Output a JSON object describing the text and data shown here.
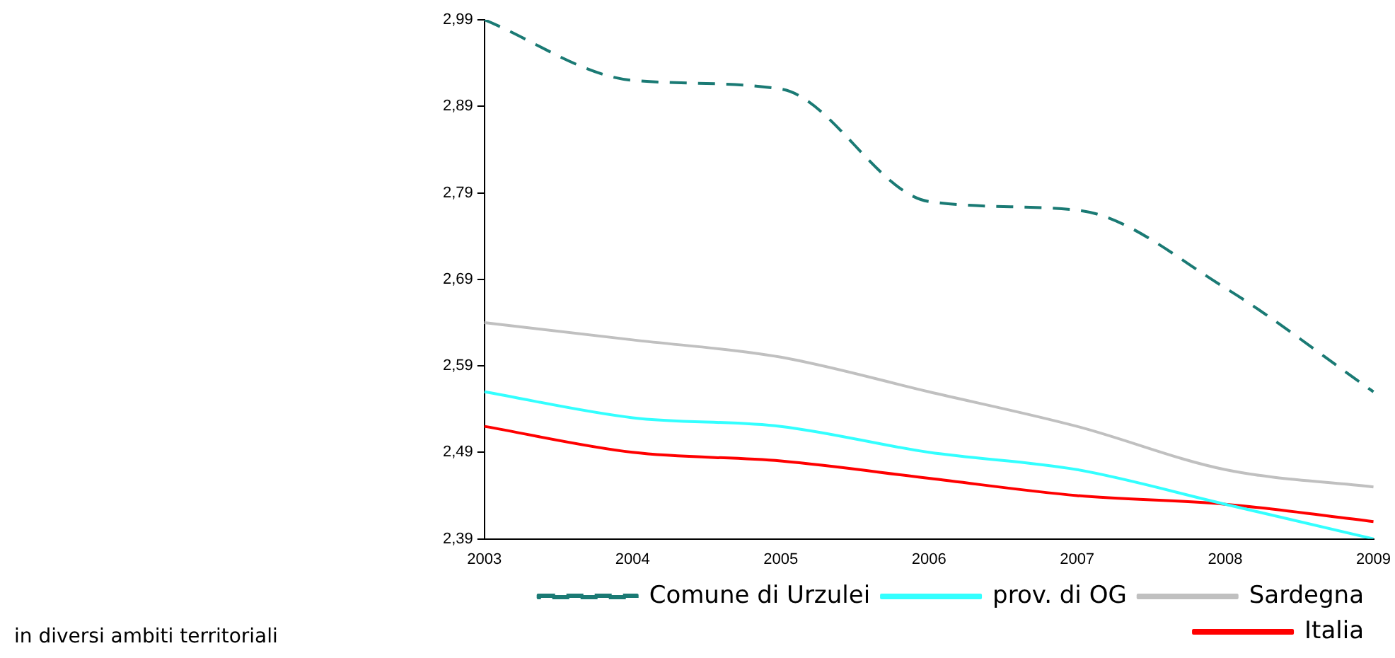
{
  "chart_data": {
    "type": "line",
    "categories": [
      "2003",
      "2004",
      "2005",
      "2006",
      "2007",
      "2008",
      "2009"
    ],
    "series": [
      {
        "name": "Comune di Urzulei",
        "color": "#1a7a74",
        "line_style": "dashed",
        "values": [
          2.99,
          2.92,
          2.91,
          2.78,
          2.77,
          2.68,
          2.56
        ]
      },
      {
        "name": "prov. di OG",
        "color": "#33ffff",
        "values": [
          2.56,
          2.53,
          2.52,
          2.49,
          2.47,
          2.43,
          2.39
        ]
      },
      {
        "name": "Sardegna",
        "color": "#c0c0c0",
        "values": [
          2.64,
          2.62,
          2.6,
          2.56,
          2.52,
          2.47,
          2.45
        ]
      },
      {
        "name": "Italia",
        "color": "#ff0000",
        "values": [
          2.52,
          2.49,
          2.48,
          2.46,
          2.44,
          2.43,
          2.41
        ]
      }
    ],
    "ylim": [
      2.39,
      2.99
    ],
    "yticks": [
      {
        "value": 2.39,
        "label": "2,39"
      },
      {
        "value": 2.49,
        "label": "2,49"
      },
      {
        "value": 2.59,
        "label": "2,59"
      },
      {
        "value": 2.69,
        "label": "2,69"
      },
      {
        "value": 2.79,
        "label": "2,79"
      },
      {
        "value": 2.89,
        "label": "2,89"
      },
      {
        "value": 2.99,
        "label": "2,99"
      }
    ],
    "grid": false,
    "legend": "bottom",
    "marker": "none",
    "annotations": [
      "in diversi ambiti territoriali"
    ]
  }
}
